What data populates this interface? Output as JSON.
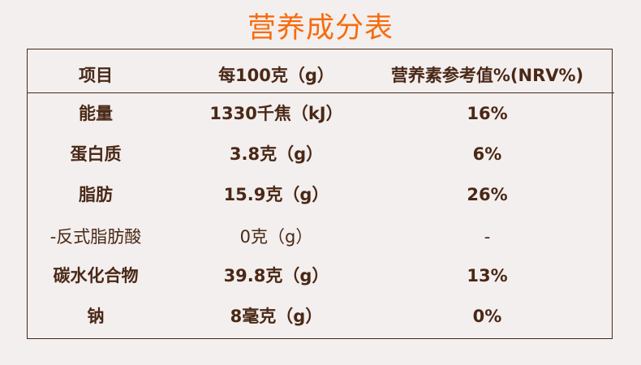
{
  "title": "营养成分表",
  "colors": {
    "title": "#f76b0d",
    "text": "#4a2816",
    "background": "#f3efee"
  },
  "table": {
    "headers": [
      "项目",
      "每100克（g）",
      "营养素参考值%(NRV%)"
    ],
    "rows": [
      {
        "item": "能量",
        "per100g": "1330千焦（kJ）",
        "nrv": "16%",
        "emphasis": true
      },
      {
        "item": "蛋白质",
        "per100g": "3.8克（g）",
        "nrv": "6%",
        "emphasis": true
      },
      {
        "item": "脂肪",
        "per100g": "15.9克（g）",
        "nrv": "26%",
        "emphasis": true
      },
      {
        "item": "-反式脂肪酸",
        "per100g": "0克（g）",
        "nrv": "-",
        "emphasis": false
      },
      {
        "item": "碳水化合物",
        "per100g": "39.8克（g）",
        "nrv": "13%",
        "emphasis": true
      },
      {
        "item": "钠",
        "per100g": "8毫克（g）",
        "nrv": "0%",
        "emphasis": true
      }
    ]
  }
}
